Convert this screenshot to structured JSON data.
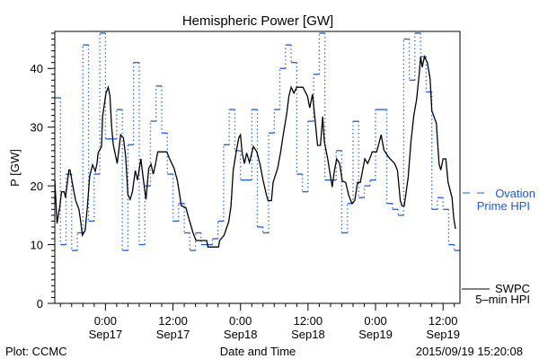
{
  "chart_data": {
    "type": "line",
    "title": "Hemispheric Power [GW]",
    "xlabel": "Date and Time",
    "ylabel": "P [GW]",
    "x_units": "hours relative to Sep17 0:00",
    "xlim": [
      -9,
      63
    ],
    "ylim": [
      0,
      46.3
    ],
    "y_ticks": [
      0,
      10,
      20,
      30,
      40
    ],
    "x_ticks": [
      {
        "hour": 0,
        "time": "0:00",
        "date": "Sep17"
      },
      {
        "hour": 12,
        "time": "12:00",
        "date": "Sep17"
      },
      {
        "hour": 24,
        "time": "0:00",
        "date": "Sep18"
      },
      {
        "hour": 36,
        "time": "12:00",
        "date": "Sep18"
      },
      {
        "hour": 48,
        "time": "0:00",
        "date": "Sep19"
      },
      {
        "hour": 60,
        "time": "12:00",
        "date": "Sep19"
      }
    ],
    "grid": false,
    "legend_placement": "right",
    "series": [
      {
        "name": "Ovation Prime HPI",
        "legend_line1": "Ovation",
        "legend_line2": "Prime HPI",
        "color": "#1a5ce6",
        "style": "step",
        "end_hour": 63,
        "steps": [
          [
            -9,
            35
          ],
          [
            -8,
            10
          ],
          [
            -7,
            22
          ],
          [
            -6,
            9
          ],
          [
            -5,
            12
          ],
          [
            -4,
            44
          ],
          [
            -3,
            14
          ],
          [
            -2,
            22
          ],
          [
            -1,
            46
          ],
          [
            0,
            28
          ],
          [
            2,
            33
          ],
          [
            3,
            9
          ],
          [
            4,
            27
          ],
          [
            5,
            41
          ],
          [
            6,
            10
          ],
          [
            7,
            20
          ],
          [
            8,
            31
          ],
          [
            9,
            37
          ],
          [
            10,
            29
          ],
          [
            11,
            22
          ],
          [
            12,
            14
          ],
          [
            13,
            17
          ],
          [
            14,
            12
          ],
          [
            15,
            9
          ],
          [
            16,
            12
          ],
          [
            17,
            10
          ],
          [
            19,
            11
          ],
          [
            20,
            14
          ],
          [
            21,
            27
          ],
          [
            22,
            33
          ],
          [
            23,
            26
          ],
          [
            24,
            21
          ],
          [
            26,
            33
          ],
          [
            27,
            13
          ],
          [
            28,
            12
          ],
          [
            29,
            29
          ],
          [
            30,
            33
          ],
          [
            31,
            40
          ],
          [
            32,
            44
          ],
          [
            33,
            41
          ],
          [
            34,
            22
          ],
          [
            35,
            19
          ],
          [
            36,
            31
          ],
          [
            37,
            39
          ],
          [
            38,
            46
          ],
          [
            39,
            21
          ],
          [
            41,
            26
          ],
          [
            42,
            12
          ],
          [
            43,
            17
          ],
          [
            44,
            31
          ],
          [
            45,
            18
          ],
          [
            46,
            20
          ],
          [
            47,
            21
          ],
          [
            48,
            33
          ],
          [
            50,
            17
          ],
          [
            51,
            16
          ],
          [
            52,
            15
          ],
          [
            53,
            45
          ],
          [
            54,
            38
          ],
          [
            55,
            46
          ],
          [
            56,
            42
          ],
          [
            57,
            36
          ],
          [
            58,
            16
          ],
          [
            59,
            18
          ],
          [
            60,
            16
          ],
          [
            61,
            10
          ],
          [
            62,
            9
          ]
        ]
      },
      {
        "name": "SWPC 5-min HPI",
        "legend_line1": "SWPC",
        "legend_line2": "5–min HPI",
        "color": "#000000",
        "style": "line",
        "points": [
          [
            -9,
            21
          ],
          [
            -8.6,
            13.6
          ],
          [
            -8.1,
            16.5
          ],
          [
            -7.8,
            19
          ],
          [
            -7.3,
            19
          ],
          [
            -7.1,
            18
          ],
          [
            -6.5,
            22.7
          ],
          [
            -6.3,
            22.7
          ],
          [
            -5.7,
            19.5
          ],
          [
            -5.3,
            17.5
          ],
          [
            -4.7,
            16
          ],
          [
            -4.4,
            14
          ],
          [
            -4.1,
            11.6
          ],
          [
            -3.6,
            12.4
          ],
          [
            -3.2,
            16.5
          ],
          [
            -2.8,
            21.6
          ],
          [
            -2.3,
            23.6
          ],
          [
            -1.8,
            22.5
          ],
          [
            -1.5,
            23.8
          ],
          [
            -1.3,
            25.6
          ],
          [
            -0.7,
            26.7
          ],
          [
            -0.5,
            31.8
          ],
          [
            0.1,
            35.8
          ],
          [
            0.5,
            36.8
          ],
          [
            0.8,
            35.3
          ],
          [
            1.1,
            30
          ],
          [
            1.4,
            27
          ],
          [
            2.1,
            23.8
          ],
          [
            2.7,
            28.7
          ],
          [
            3.2,
            28.2
          ],
          [
            3.6,
            25
          ],
          [
            4.0,
            18.5
          ],
          [
            4.4,
            17.7
          ],
          [
            4.8,
            19
          ],
          [
            5.3,
            22.6
          ],
          [
            5.7,
            21
          ],
          [
            6.3,
            24.6
          ],
          [
            6.8,
            20.6
          ],
          [
            7.2,
            17.7
          ],
          [
            7.7,
            23
          ],
          [
            8.1,
            23.7
          ],
          [
            8.5,
            22
          ],
          [
            8.9,
            23.7
          ],
          [
            9.3,
            25.8
          ],
          [
            10.9,
            25.8
          ],
          [
            11.4,
            24.6
          ],
          [
            12.2,
            23
          ],
          [
            12.8,
            20.8
          ],
          [
            13.5,
            16.6
          ],
          [
            14.3,
            16.3
          ],
          [
            14.8,
            14.5
          ],
          [
            15.6,
            11.9
          ],
          [
            16.1,
            10.7
          ],
          [
            18.0,
            10.7
          ],
          [
            18.2,
            9.6
          ],
          [
            20.1,
            9.6
          ],
          [
            20.3,
            10.7
          ],
          [
            21.1,
            11.6
          ],
          [
            21.9,
            13.9
          ],
          [
            22.3,
            16.5
          ],
          [
            22.7,
            22.6
          ],
          [
            23.2,
            25.6
          ],
          [
            23.7,
            28.2
          ],
          [
            24.0,
            28.7
          ],
          [
            24.3,
            25.6
          ],
          [
            24.7,
            23.8
          ],
          [
            25.1,
            25.6
          ],
          [
            25.6,
            24
          ],
          [
            26.3,
            26.7
          ],
          [
            26.9,
            25.8
          ],
          [
            27.5,
            23.6
          ],
          [
            28.0,
            21
          ],
          [
            28.6,
            18.5
          ],
          [
            28.9,
            17.5
          ],
          [
            29.5,
            17.5
          ],
          [
            29.8,
            20.6
          ],
          [
            30.6,
            23
          ],
          [
            31.1,
            25.6
          ],
          [
            31.6,
            28.7
          ],
          [
            32.2,
            32.2
          ],
          [
            32.6,
            35.3
          ],
          [
            33.0,
            36.8
          ],
          [
            33.5,
            35.8
          ],
          [
            34.0,
            36.8
          ],
          [
            35.1,
            36.8
          ],
          [
            35.9,
            35.3
          ],
          [
            36.3,
            33.3
          ],
          [
            36.8,
            35.6
          ],
          [
            37.2,
            31.8
          ],
          [
            37.7,
            26.9
          ],
          [
            38.2,
            26.9
          ],
          [
            38.6,
            31.8
          ],
          [
            38.9,
            27.6
          ],
          [
            39.5,
            24.6
          ],
          [
            40.1,
            21
          ],
          [
            40.3,
            19.8
          ],
          [
            40.7,
            22.6
          ],
          [
            41.1,
            24.6
          ],
          [
            41.6,
            23.8
          ],
          [
            42.1,
            20.8
          ],
          [
            42.7,
            20.6
          ],
          [
            43.2,
            18.5
          ],
          [
            43.8,
            17
          ],
          [
            44.3,
            17.5
          ],
          [
            44.8,
            20.6
          ],
          [
            45.3,
            20.6
          ],
          [
            46.1,
            24.6
          ],
          [
            46.6,
            23.8
          ],
          [
            47.2,
            25.2
          ],
          [
            47.4,
            25.8
          ],
          [
            48.2,
            25.8
          ],
          [
            49.0,
            28.7
          ],
          [
            49.5,
            26.1
          ],
          [
            50.3,
            24.9
          ],
          [
            51.4,
            23.8
          ],
          [
            51.9,
            22.6
          ],
          [
            52.4,
            17.5
          ],
          [
            52.7,
            16.6
          ],
          [
            53.1,
            16.6
          ],
          [
            53.8,
            21.5
          ],
          [
            54.3,
            27.6
          ],
          [
            54.8,
            31.9
          ],
          [
            55.3,
            34.8
          ],
          [
            55.8,
            39.4
          ],
          [
            56.0,
            42
          ],
          [
            56.3,
            40.2
          ],
          [
            56.7,
            42
          ],
          [
            57.2,
            41
          ],
          [
            57.7,
            38.2
          ],
          [
            58.0,
            32.8
          ],
          [
            58.8,
            30.7
          ],
          [
            59.3,
            23.7
          ],
          [
            59.6,
            22.7
          ],
          [
            60.0,
            24.6
          ],
          [
            60.5,
            24.6
          ],
          [
            60.9,
            20.6
          ],
          [
            61.6,
            18
          ],
          [
            61.9,
            14.5
          ],
          [
            62.2,
            12.7
          ]
        ]
      }
    ]
  },
  "footer": {
    "plot_credit": "Plot: CCMC",
    "xlabel": "Date and Time",
    "timestamp": "2015/09/19 15:20:08"
  }
}
